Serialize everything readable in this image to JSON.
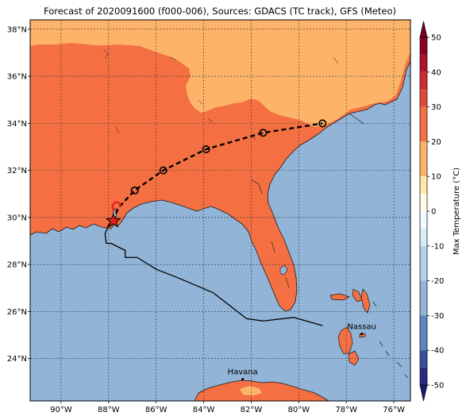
{
  "title": "Forecast of 2020091600 (f000-006), Sources: GDACS (TC track), GFS (Meteo)",
  "colors": {
    "ocean": "#92b4d7",
    "warm_20_30": "#f47043",
    "warm_10_20": "#fdb469",
    "track": "#000000",
    "storm": "#e8221a"
  },
  "map": {
    "lon_range": [
      -91.3,
      -75.3
    ],
    "lat_range": [
      22.2,
      38.4
    ],
    "lon_ticks": [
      {
        "v": -90,
        "label": "90°W"
      },
      {
        "v": -88,
        "label": "88°W"
      },
      {
        "v": -86,
        "label": "86°W"
      },
      {
        "v": -84,
        "label": "84°W"
      },
      {
        "v": -82,
        "label": "82°W"
      },
      {
        "v": -80,
        "label": "80°W"
      },
      {
        "v": -78,
        "label": "78°W"
      },
      {
        "v": -76,
        "label": "76°W"
      }
    ],
    "lat_ticks": [
      {
        "v": 24,
        "label": "24°N"
      },
      {
        "v": 26,
        "label": "26°N"
      },
      {
        "v": 28,
        "label": "28°N"
      },
      {
        "v": 30,
        "label": "30°N"
      },
      {
        "v": 32,
        "label": "32°N"
      },
      {
        "v": 34,
        "label": "34°N"
      },
      {
        "v": 36,
        "label": "36°N"
      },
      {
        "v": 38,
        "label": "38°N"
      }
    ],
    "cities": [
      {
        "name": "Havana",
        "lon": -82.36,
        "lat": 23.12
      },
      {
        "name": "Nassau",
        "lon": -77.35,
        "lat": 25.05
      }
    ],
    "current_position": {
      "lon": -87.8,
      "lat": 29.85
    },
    "forecast_track": [
      {
        "lon": -87.6,
        "lat": 30.4
      },
      {
        "lon": -86.9,
        "lat": 31.15
      },
      {
        "lon": -85.7,
        "lat": 32.0
      },
      {
        "lon": -83.9,
        "lat": 32.9
      },
      {
        "lon": -81.5,
        "lat": 33.6
      },
      {
        "lon": -79.0,
        "lat": 34.0
      }
    ],
    "past_track": [
      {
        "lon": -79.0,
        "lat": 25.4
      },
      {
        "lon": -80.2,
        "lat": 25.75
      },
      {
        "lon": -81.5,
        "lat": 25.6
      },
      {
        "lon": -82.2,
        "lat": 25.7
      },
      {
        "lon": -83.6,
        "lat": 26.8
      },
      {
        "lon": -85.0,
        "lat": 27.4
      },
      {
        "lon": -86.0,
        "lat": 27.8
      },
      {
        "lon": -86.8,
        "lat": 28.3
      },
      {
        "lon": -87.3,
        "lat": 28.3
      },
      {
        "lon": -87.3,
        "lat": 28.6
      },
      {
        "lon": -87.9,
        "lat": 28.9
      },
      {
        "lon": -88.1,
        "lat": 28.9
      },
      {
        "lon": -88.15,
        "lat": 29.3
      },
      {
        "lon": -88.0,
        "lat": 29.7
      },
      {
        "lon": -87.8,
        "lat": 29.85
      }
    ]
  },
  "colorbar": {
    "label": "Max Temperature (°C)",
    "ticks": [
      50,
      40,
      30,
      20,
      10,
      0,
      -10,
      -20,
      -30,
      -40,
      -50
    ],
    "segments": [
      {
        "from": 45,
        "to": 50,
        "color": "#8e0121"
      },
      {
        "from": 40,
        "to": 45,
        "color": "#b2102b"
      },
      {
        "from": 35,
        "to": 40,
        "color": "#cf2a2d"
      },
      {
        "from": 30,
        "to": 35,
        "color": "#e4473a"
      },
      {
        "from": 20,
        "to": 30,
        "color": "#f47043"
      },
      {
        "from": 10,
        "to": 20,
        "color": "#fdb469"
      },
      {
        "from": 5,
        "to": 10,
        "color": "#fde8a8"
      },
      {
        "from": 0,
        "to": 5,
        "color": "#fffbe6"
      },
      {
        "from": -5,
        "to": 0,
        "color": "#f2fbff"
      },
      {
        "from": -10,
        "to": -5,
        "color": "#d6eef5"
      },
      {
        "from": -20,
        "to": -10,
        "color": "#aed6e8"
      },
      {
        "from": -30,
        "to": -20,
        "color": "#92b4d7"
      },
      {
        "from": -40,
        "to": -30,
        "color": "#5b86bf"
      },
      {
        "from": -45,
        "to": -40,
        "color": "#3a4fa0"
      },
      {
        "from": -50,
        "to": -45,
        "color": "#2a2a85"
      }
    ],
    "over_color": "#7a0022",
    "under_color": "#1a1a78"
  }
}
